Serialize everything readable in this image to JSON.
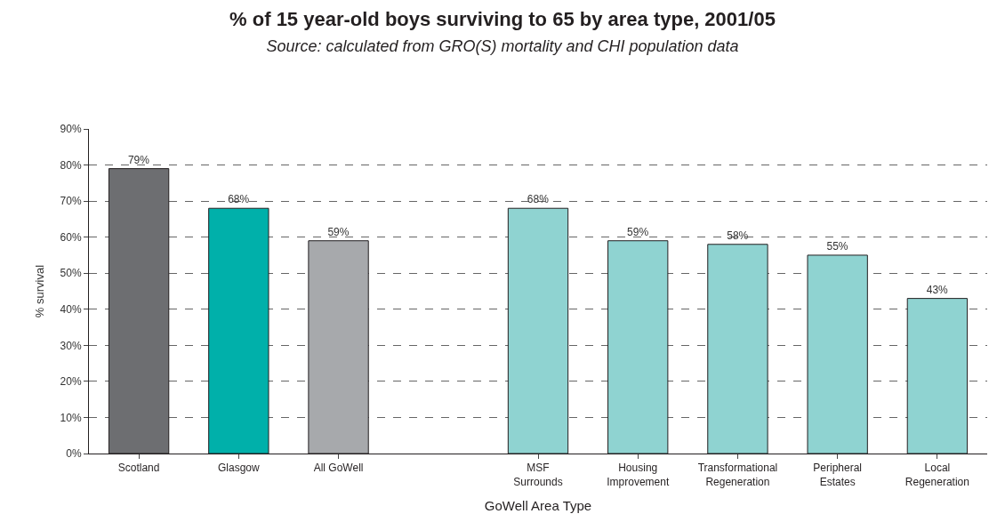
{
  "chart_data": {
    "type": "bar",
    "title": "% of 15 year-old boys surviving to 65 by area type, 2001/05",
    "subtitle": "Source: calculated from GRO(S) mortality and CHI population data",
    "xlabel": "GoWell Area Type",
    "ylabel": "% survival",
    "categories": [
      "Scotland",
      "Glasgow",
      "All GoWell",
      null,
      "MSF\nSurrounds",
      "Housing\nImprovement",
      "Transformational\nRegeneration",
      "Peripheral\nEstates",
      "Local\nRegeneration"
    ],
    "values": [
      79,
      68,
      59,
      null,
      68,
      59,
      58,
      55,
      43
    ],
    "colors": [
      "#6d6e71",
      "#00b0aa",
      "#a7a9ac",
      "#8fd3d1",
      "#8fd3d1",
      "#8fd3d1",
      "#8fd3d1",
      "#8fd3d1",
      "#8fd3d1"
    ],
    "value_labels": [
      "79%",
      "68%",
      "59%",
      null,
      "68%",
      "59%",
      "58%",
      "55%",
      "43%"
    ],
    "ylim": [
      0,
      90
    ],
    "yticks": [
      {
        "value": 0,
        "label": "0%"
      },
      {
        "value": 10,
        "label": "10%"
      },
      {
        "value": 20,
        "label": "20%"
      },
      {
        "value": 30,
        "label": "30%"
      },
      {
        "value": 40,
        "label": "40%"
      },
      {
        "value": 50,
        "label": "50%"
      },
      {
        "value": 60,
        "label": "60%"
      },
      {
        "value": 70,
        "label": "70%"
      },
      {
        "value": 80,
        "label": "80%"
      },
      {
        "value": 90,
        "label": "90%"
      }
    ],
    "grid": "y"
  }
}
